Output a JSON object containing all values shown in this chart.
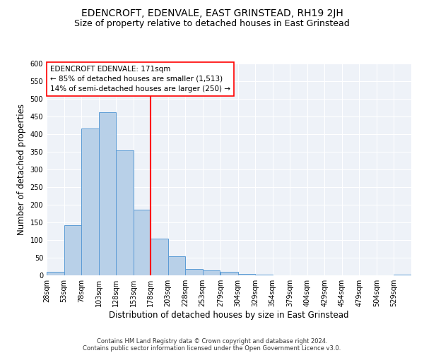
{
  "title": "EDENCROFT, EDENVALE, EAST GRINSTEAD, RH19 2JH",
  "subtitle": "Size of property relative to detached houses in East Grinstead",
  "xlabel": "Distribution of detached houses by size in East Grinstead",
  "ylabel": "Number of detached properties",
  "bin_labels": [
    "28sqm",
    "53sqm",
    "78sqm",
    "103sqm",
    "128sqm",
    "153sqm",
    "178sqm",
    "203sqm",
    "228sqm",
    "253sqm",
    "279sqm",
    "304sqm",
    "329sqm",
    "354sqm",
    "379sqm",
    "404sqm",
    "429sqm",
    "454sqm",
    "479sqm",
    "504sqm",
    "529sqm"
  ],
  "bin_edges": [
    28,
    53,
    78,
    103,
    128,
    153,
    178,
    203,
    228,
    253,
    279,
    304,
    329,
    354,
    379,
    404,
    429,
    454,
    479,
    504,
    529
  ],
  "bin_width": 25,
  "bar_heights": [
    10,
    142,
    416,
    463,
    355,
    187,
    104,
    55,
    19,
    14,
    10,
    4,
    2,
    1,
    0,
    0,
    0,
    0,
    0,
    0,
    2
  ],
  "bar_color": "#b8d0e8",
  "bar_edge_color": "#5b9bd5",
  "reference_line_x": 178,
  "reference_line_color": "red",
  "annotation_line1": "EDENCROFT EDENVALE: 171sqm",
  "annotation_line2": "← 85% of detached houses are smaller (1,513)",
  "annotation_line3": "14% of semi-detached houses are larger (250) →",
  "ylim": [
    0,
    600
  ],
  "yticks": [
    0,
    50,
    100,
    150,
    200,
    250,
    300,
    350,
    400,
    450,
    500,
    550,
    600
  ],
  "footnote_line1": "Contains HM Land Registry data © Crown copyright and database right 2024.",
  "footnote_line2": "Contains public sector information licensed under the Open Government Licence v3.0.",
  "title_fontsize": 10,
  "subtitle_fontsize": 9,
  "label_fontsize": 8.5,
  "tick_fontsize": 7,
  "annotation_fontsize": 7.5,
  "footnote_fontsize": 6,
  "background_color": "#eef2f8",
  "grid_color": "white",
  "fig_bg": "white"
}
